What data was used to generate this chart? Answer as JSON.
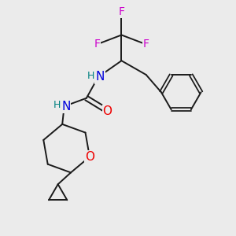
{
  "bg_color": "#ebebeb",
  "atom_colors": {
    "N": "#0000dd",
    "O": "#ee0000",
    "F": "#cc00cc",
    "H_on_N": "#008080"
  },
  "bond_color": "#1a1a1a",
  "bond_width": 1.4,
  "figsize": [
    3.0,
    3.0
  ],
  "dpi": 100,
  "xlim": [
    0,
    10
  ],
  "ylim": [
    0,
    10
  ]
}
